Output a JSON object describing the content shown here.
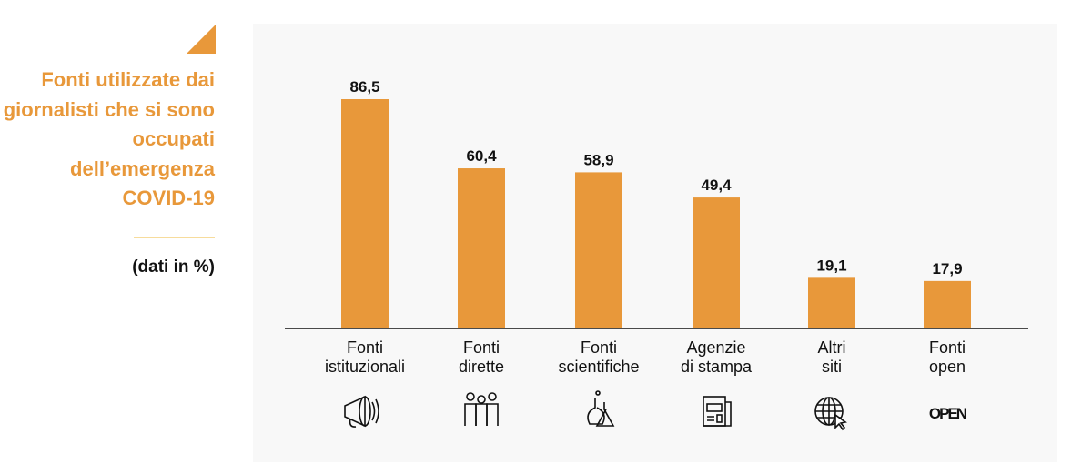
{
  "sidebar": {
    "title": "Fonti utilizzate dai giornalisti che si sono occupati dell’emergenza COVID-19",
    "subtitle": "(dati in %)"
  },
  "colors": {
    "accent": "#e8983a",
    "rule": "#f7dc9c",
    "panel": "#f8f8f8"
  },
  "chart_data": {
    "type": "bar",
    "title": "Fonti utilizzate dai giornalisti che si sono occupati dell’emergenza COVID-19",
    "unit": "(dati in %)",
    "categories": [
      [
        "Fonti",
        "istituzionali"
      ],
      [
        "Fonti",
        "dirette"
      ],
      [
        "Fonti",
        "scientifiche"
      ],
      [
        "Agenzie",
        "di stampa"
      ],
      [
        "Altri",
        "siti"
      ],
      [
        "Fonti",
        "open"
      ]
    ],
    "labels": [
      "86,5",
      "60,4",
      "58,9",
      "49,4",
      "19,1",
      "17,9"
    ],
    "values": [
      86.5,
      60.4,
      58.9,
      49.4,
      19.1,
      17.9
    ],
    "icons": [
      "megaphone-icon",
      "people-icon",
      "lab-flask-icon",
      "newspaper-icon",
      "globe-cursor-icon",
      "open-text-icon"
    ],
    "open_icon_text": "OPEN",
    "ylim": [
      0,
      100
    ],
    "grid": false,
    "color": "#e8983a"
  }
}
